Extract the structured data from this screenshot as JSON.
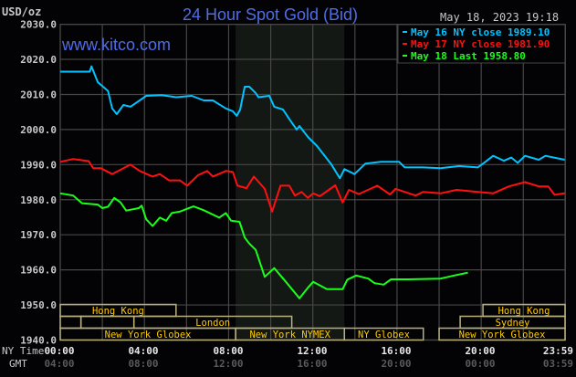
{
  "header": {
    "unit": "USD/oz",
    "title": "24 Hour Spot Gold (Bid)",
    "timestamp": "May 18, 2023 19:18",
    "watermark": "www.kitco.com"
  },
  "colors": {
    "title": "#4f6de6",
    "may16": "#00c3ff",
    "may17": "#ff1010",
    "may18": "#19ff19",
    "session_text": "#ffcc00",
    "session_border": "#b8b07c",
    "grid": "#464646",
    "shade": "#141814"
  },
  "legend": [
    {
      "label": "May 16 NY close 1989.10",
      "color": "#00c3ff"
    },
    {
      "label": "May 17 NY close 1981.90",
      "color": "#ff1010"
    },
    {
      "label": "May 18 Last 1958.80",
      "color": "#19ff19"
    }
  ],
  "x_axis": {
    "ny_label": "NY Time",
    "gmt_label": "GMT",
    "ny_ticks": [
      "00:00",
      "04:00",
      "08:00",
      "12:00",
      "16:00",
      "20:00",
      "23:59"
    ],
    "gmt_ticks": [
      "04:00",
      "08:00",
      "12:00",
      "16:00",
      "20:00",
      "00:00",
      "03:59"
    ]
  },
  "sessions": [
    {
      "label": "Hong Kong",
      "row": 1,
      "start": "00:00",
      "end": "05:30"
    },
    {
      "label": "Hong Kong",
      "row": 1,
      "start": "20:05",
      "end": "23:59"
    },
    {
      "label": "",
      "row": 2,
      "start": "00:00",
      "end": "00:59"
    },
    {
      "label": "",
      "row": 2,
      "start": "00:59",
      "end": "03:30"
    },
    {
      "label": "London",
      "row": 2,
      "start": "03:30",
      "end": "11:00"
    },
    {
      "label": "Sydney",
      "row": 2,
      "start": "19:00",
      "end": "23:59"
    },
    {
      "label": "New York Globex",
      "row": 3,
      "start": "00:00",
      "end": "08:20"
    },
    {
      "label": "New York NYMEX",
      "row": 3,
      "start": "08:20",
      "end": "13:30"
    },
    {
      "label": "NY Globex",
      "row": 3,
      "start": "13:30",
      "end": "17:15"
    },
    {
      "label": "New York Globex",
      "row": 3,
      "start": "18:00",
      "end": "23:59"
    }
  ],
  "chart_data": {
    "type": "line",
    "title": "24 Hour Spot Gold (Bid)",
    "ylabel": "USD/oz",
    "xlabel": "NY Time",
    "ylim": [
      1940,
      2030
    ],
    "yticks": [
      "2030.0",
      "2020.0",
      "2010.0",
      "2000.0",
      "1990.0",
      "1980.0",
      "1970.0",
      "1960.0",
      "1950.0",
      "1940.0"
    ],
    "xlim": [
      "00:00",
      "23:59"
    ],
    "grid": true,
    "legend_position": "top-right",
    "shaded_period": [
      "08:20",
      "13:30"
    ],
    "series": [
      {
        "name": "May 16 NY close 1989.10",
        "color": "#00c3ff",
        "points": [
          [
            "00:00",
            2016.5
          ],
          [
            "01:24",
            2016.5
          ],
          [
            "01:29",
            2018
          ],
          [
            "01:47",
            2013.5
          ],
          [
            "02:16",
            2011
          ],
          [
            "02:28",
            2006
          ],
          [
            "02:41",
            2004.4
          ],
          [
            "03:00",
            2007
          ],
          [
            "03:20",
            2006.5
          ],
          [
            "03:39",
            2007.8
          ],
          [
            "04:05",
            2009.6
          ],
          [
            "04:49",
            2009.8
          ],
          [
            "05:31",
            2009.2
          ],
          [
            "06:15",
            2009.6
          ],
          [
            "06:49",
            2008.3
          ],
          [
            "07:15",
            2008.3
          ],
          [
            "07:52",
            2006
          ],
          [
            "08:12",
            2005.2
          ],
          [
            "08:23",
            2003.9
          ],
          [
            "08:33",
            2005.7
          ],
          [
            "08:46",
            2012.2
          ],
          [
            "08:59",
            2012.2
          ],
          [
            "09:17",
            2010.4
          ],
          [
            "09:25",
            2009.2
          ],
          [
            "09:56",
            2009.6
          ],
          [
            "10:10",
            2006.5
          ],
          [
            "10:35",
            2005.7
          ],
          [
            "10:53",
            2003
          ],
          [
            "11:14",
            2000
          ],
          [
            "11:22",
            2001
          ],
          [
            "11:46",
            1997.9
          ],
          [
            "12:12",
            1995.3
          ],
          [
            "12:53",
            1990
          ],
          [
            "13:17",
            1986.1
          ],
          [
            "13:30",
            1988.7
          ],
          [
            "13:59",
            1987.3
          ],
          [
            "14:30",
            1990.3
          ],
          [
            "15:14",
            1990.8
          ],
          [
            "16:06",
            1990.8
          ],
          [
            "16:22",
            1989.2
          ],
          [
            "17:14",
            1989.2
          ],
          [
            "18:04",
            1989
          ],
          [
            "18:58",
            1989.6
          ],
          [
            "19:50",
            1989.2
          ],
          [
            "20:08",
            1990.5
          ],
          [
            "20:34",
            1992.5
          ],
          [
            "21:05",
            1991.1
          ],
          [
            "21:26",
            1992
          ],
          [
            "21:44",
            1990.5
          ],
          [
            "22:05",
            1992.5
          ],
          [
            "22:44",
            1991.4
          ],
          [
            "23:03",
            1992.5
          ],
          [
            "23:37",
            1991.8
          ],
          [
            "23:58",
            1991.4
          ]
        ]
      },
      {
        "name": "May 17 NY close 1981.90",
        "color": "#ff1010",
        "points": [
          [
            "00:00",
            1990.8
          ],
          [
            "00:37",
            1991.6
          ],
          [
            "01:21",
            1991
          ],
          [
            "01:34",
            1989
          ],
          [
            "01:55",
            1989
          ],
          [
            "02:28",
            1987.3
          ],
          [
            "03:20",
            1990
          ],
          [
            "03:47",
            1988.2
          ],
          [
            "04:23",
            1986.6
          ],
          [
            "04:44",
            1987.3
          ],
          [
            "05:10",
            1985.5
          ],
          [
            "05:41",
            1985.5
          ],
          [
            "06:02",
            1984
          ],
          [
            "06:33",
            1987
          ],
          [
            "06:59",
            1988.2
          ],
          [
            "07:15",
            1986.6
          ],
          [
            "07:52",
            1988.2
          ],
          [
            "08:12",
            1987.9
          ],
          [
            "08:25",
            1984
          ],
          [
            "08:51",
            1983.3
          ],
          [
            "09:12",
            1986.6
          ],
          [
            "09:43",
            1983.1
          ],
          [
            "10:04",
            1976.6
          ],
          [
            "10:28",
            1984
          ],
          [
            "10:53",
            1984
          ],
          [
            "11:09",
            1981.2
          ],
          [
            "11:28",
            1982.2
          ],
          [
            "11:46",
            1980.5
          ],
          [
            "12:01",
            1981.8
          ],
          [
            "12:20",
            1981
          ],
          [
            "12:40",
            1982.4
          ],
          [
            "13:04",
            1984.1
          ],
          [
            "13:25",
            1979.2
          ],
          [
            "13:43",
            1982.8
          ],
          [
            "14:11",
            1981.6
          ],
          [
            "15:04",
            1984
          ],
          [
            "15:40",
            1981.5
          ],
          [
            "15:56",
            1983.1
          ],
          [
            "16:53",
            1981.2
          ],
          [
            "17:14",
            1982.2
          ],
          [
            "18:04",
            1981.8
          ],
          [
            "18:50",
            1982.8
          ],
          [
            "19:50",
            1982.2
          ],
          [
            "20:34",
            1981.8
          ],
          [
            "21:19",
            1983.8
          ],
          [
            "22:05",
            1985
          ],
          [
            "22:44",
            1983.8
          ],
          [
            "23:11",
            1983.8
          ],
          [
            "23:29",
            1981.4
          ],
          [
            "23:58",
            1981.8
          ]
        ]
      },
      {
        "name": "May 18 Last 1958.80",
        "color": "#19ff19",
        "points": [
          [
            "00:00",
            1981.8
          ],
          [
            "00:37",
            1981.2
          ],
          [
            "01:02",
            1979
          ],
          [
            "01:47",
            1978.6
          ],
          [
            "02:00",
            1977.6
          ],
          [
            "02:16",
            1978
          ],
          [
            "02:34",
            1980.5
          ],
          [
            "02:52",
            1979.2
          ],
          [
            "03:08",
            1976.9
          ],
          [
            "03:44",
            1977.6
          ],
          [
            "03:52",
            1978.3
          ],
          [
            "04:05",
            1974.4
          ],
          [
            "04:23",
            1972.5
          ],
          [
            "04:44",
            1974.9
          ],
          [
            "05:02",
            1974
          ],
          [
            "05:18",
            1976.2
          ],
          [
            "05:41",
            1976.6
          ],
          [
            "06:20",
            1978.1
          ],
          [
            "06:49",
            1977
          ],
          [
            "07:33",
            1974.9
          ],
          [
            "07:52",
            1976.2
          ],
          [
            "08:07",
            1974
          ],
          [
            "08:31",
            1973.7
          ],
          [
            "08:46",
            1969.2
          ],
          [
            "08:59",
            1967.5
          ],
          [
            "09:17",
            1965.7
          ],
          [
            "09:43",
            1958
          ],
          [
            "10:10",
            1960.5
          ],
          [
            "10:43",
            1956.6
          ],
          [
            "11:22",
            1951.9
          ],
          [
            "11:46",
            1954.9
          ],
          [
            "12:01",
            1956.6
          ],
          [
            "12:40",
            1954.5
          ],
          [
            "13:25",
            1954.5
          ],
          [
            "13:38",
            1957.2
          ],
          [
            "14:04",
            1958.4
          ],
          [
            "14:38",
            1957.5
          ],
          [
            "14:56",
            1956.2
          ],
          [
            "15:22",
            1955.8
          ],
          [
            "15:43",
            1957.3
          ],
          [
            "16:32",
            1957.3
          ],
          [
            "18:04",
            1957.5
          ],
          [
            "18:43",
            1958.4
          ],
          [
            "19:22",
            1959.2
          ]
        ]
      }
    ]
  }
}
